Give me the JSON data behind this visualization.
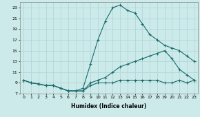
{
  "xlabel": "Humidex (Indice chaleur)",
  "xlim": [
    -0.5,
    23.5
  ],
  "ylim": [
    7,
    24
  ],
  "yticks": [
    7,
    9,
    11,
    13,
    15,
    17,
    19,
    21,
    23
  ],
  "xticks": [
    0,
    1,
    2,
    3,
    4,
    5,
    6,
    7,
    8,
    9,
    10,
    11,
    12,
    13,
    14,
    15,
    16,
    17,
    18,
    19,
    20,
    21,
    22,
    23
  ],
  "bg_color": "#cdeaea",
  "line_color": "#1a6b6b",
  "grid_color": "#b0d8d8",
  "line1_x": [
    0,
    1,
    2,
    3,
    4,
    5,
    6,
    7,
    8,
    9,
    10,
    11,
    12,
    13,
    14,
    15,
    16,
    17,
    18,
    19,
    20,
    21,
    22,
    23
  ],
  "line1_y": [
    9.5,
    9,
    8.8,
    8.5,
    8.5,
    8,
    7.5,
    7.5,
    8,
    12.5,
    17,
    20.5,
    23,
    23.5,
    22.5,
    22,
    20,
    18,
    17,
    16,
    15.5,
    15,
    14,
    13
  ],
  "line2_x": [
    0,
    1,
    2,
    3,
    4,
    5,
    6,
    7,
    8,
    9,
    10,
    11,
    12,
    13,
    14,
    15,
    16,
    17,
    18,
    19,
    20,
    21,
    22,
    23
  ],
  "line2_y": [
    9.5,
    9,
    8.8,
    8.5,
    8.5,
    8,
    7.5,
    7.5,
    7.5,
    9,
    9.5,
    10,
    11,
    12,
    12.5,
    13,
    13.5,
    14,
    14.5,
    15,
    13.5,
    11.5,
    10.5,
    9.5
  ],
  "line3_x": [
    0,
    1,
    2,
    3,
    4,
    5,
    6,
    7,
    8,
    9,
    10,
    11,
    12,
    13,
    14,
    15,
    16,
    17,
    18,
    19,
    20,
    21,
    22,
    23
  ],
  "line3_y": [
    9.5,
    9,
    8.8,
    8.5,
    8.5,
    8,
    7.5,
    7.5,
    7.5,
    8.5,
    9,
    9,
    9,
    9.5,
    9.5,
    9.5,
    9.5,
    9.5,
    9.5,
    9,
    9,
    9.5,
    9,
    9.5
  ]
}
